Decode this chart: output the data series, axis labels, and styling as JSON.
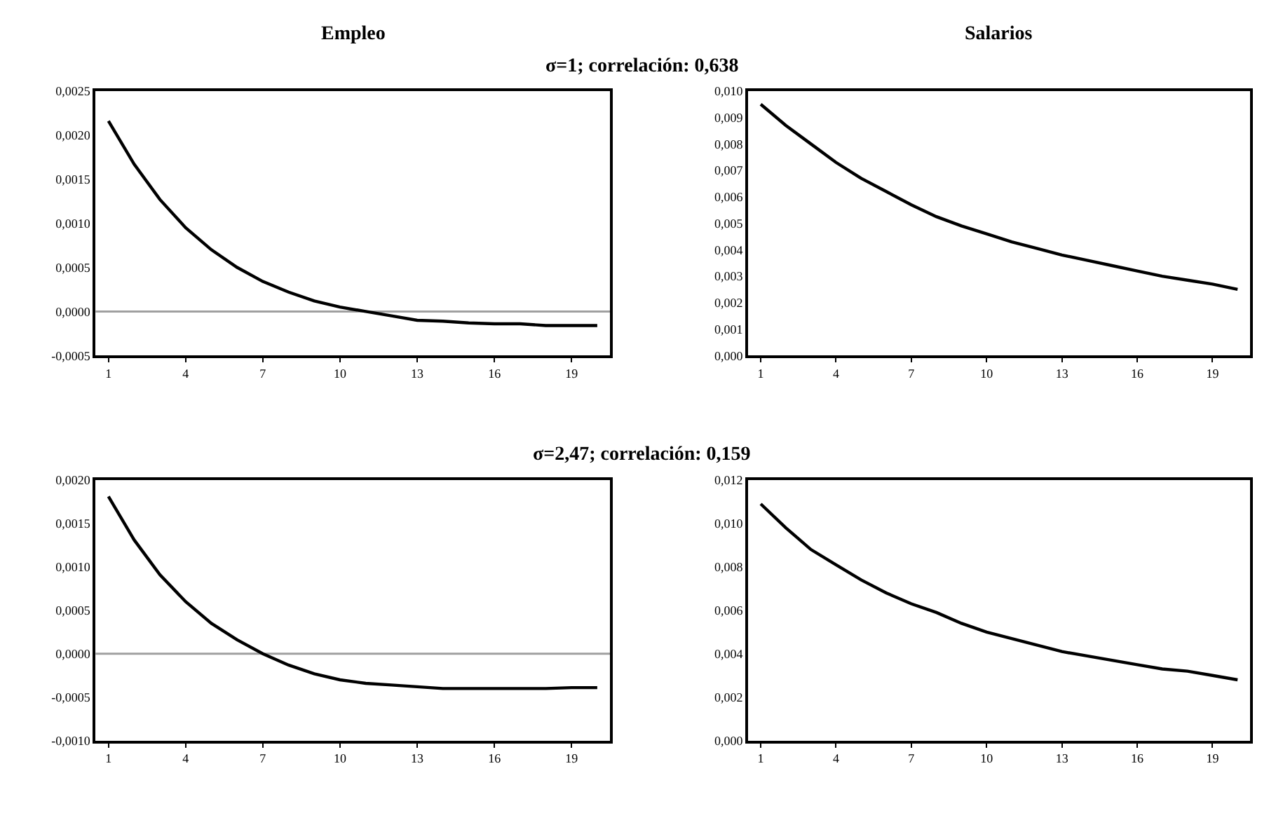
{
  "chart_data": [
    {
      "type": "line",
      "title": "Empleo",
      "subtitle": "σ=1; correlación: 0,638",
      "x": [
        1,
        2,
        3,
        4,
        5,
        6,
        7,
        8,
        9,
        10,
        11,
        12,
        13,
        14,
        15,
        16,
        17,
        18,
        19,
        20
      ],
      "series": [
        {
          "color": "#000000",
          "values": [
            0.00216,
            0.00167,
            0.00127,
            0.00095,
            0.0007,
            0.0005,
            0.00034,
            0.00022,
            0.00012,
            5e-05,
            0,
            -5e-05,
            -0.0001,
            -0.00011,
            -0.00013,
            -0.00014,
            -0.00014,
            -0.00016,
            -0.00016,
            -0.00016
          ]
        }
      ],
      "xlim": [
        0.5,
        20.5
      ],
      "xticks": [
        1,
        4,
        7,
        10,
        13,
        16,
        19
      ],
      "ylim": [
        -0.0005,
        0.0025
      ],
      "yticks": [
        {
          "value": -0.0005,
          "label": "-0,0005"
        },
        {
          "value": 0,
          "label": "0,0000"
        },
        {
          "value": 0.0005,
          "label": "0,0005"
        },
        {
          "value": 0.001,
          "label": "0,0010"
        },
        {
          "value": 0.0015,
          "label": "0,0015"
        },
        {
          "value": 0.002,
          "label": "0,0020"
        },
        {
          "value": 0.0025,
          "label": "0,0025"
        }
      ],
      "ref_lines": [
        {
          "axis": "y",
          "value": 0,
          "color": "#a0a0a0"
        }
      ],
      "grid": false,
      "marker": "none",
      "line_style": "solid"
    },
    {
      "type": "line",
      "title": "Salarios",
      "x": [
        1,
        2,
        3,
        4,
        5,
        6,
        7,
        8,
        9,
        10,
        11,
        12,
        13,
        14,
        15,
        16,
        17,
        18,
        19,
        20
      ],
      "series": [
        {
          "color": "#000000",
          "values": [
            0.0095,
            0.0087,
            0.008,
            0.0073,
            0.0067,
            0.0062,
            0.0057,
            0.00525,
            0.0049,
            0.0046,
            0.0043,
            0.00405,
            0.0038,
            0.0036,
            0.0034,
            0.0032,
            0.003,
            0.00285,
            0.0027,
            0.0025
          ]
        }
      ],
      "xlim": [
        0.5,
        20.5
      ],
      "xticks": [
        1,
        4,
        7,
        10,
        13,
        16,
        19
      ],
      "ylim": [
        0,
        0.01
      ],
      "yticks": [
        {
          "value": 0,
          "label": "0,000"
        },
        {
          "value": 0.001,
          "label": "0,001"
        },
        {
          "value": 0.002,
          "label": "0,002"
        },
        {
          "value": 0.003,
          "label": "0,003"
        },
        {
          "value": 0.004,
          "label": "0,004"
        },
        {
          "value": 0.005,
          "label": "0,005"
        },
        {
          "value": 0.006,
          "label": "0,006"
        },
        {
          "value": 0.007,
          "label": "0,007"
        },
        {
          "value": 0.008,
          "label": "0,008"
        },
        {
          "value": 0.009,
          "label": "0,009"
        },
        {
          "value": 0.01,
          "label": "0,010"
        }
      ],
      "grid": false,
      "marker": "none",
      "line_style": "solid"
    },
    {
      "type": "line",
      "subtitle": "σ=2,47; correlación: 0,159",
      "x": [
        1,
        2,
        3,
        4,
        5,
        6,
        7,
        8,
        9,
        10,
        11,
        12,
        13,
        14,
        15,
        16,
        17,
        18,
        19,
        20
      ],
      "series": [
        {
          "color": "#000000",
          "values": [
            0.00181,
            0.00131,
            0.00091,
            0.0006,
            0.00035,
            0.00016,
            0,
            -0.00013,
            -0.00023,
            -0.0003,
            -0.00034,
            -0.00036,
            -0.00038,
            -0.0004,
            -0.0004,
            -0.0004,
            -0.0004,
            -0.0004,
            -0.00039,
            -0.00039
          ]
        }
      ],
      "xlim": [
        0.5,
        20.5
      ],
      "xticks": [
        1,
        4,
        7,
        10,
        13,
        16,
        19
      ],
      "ylim": [
        -0.001,
        0.002
      ],
      "yticks": [
        {
          "value": -0.001,
          "label": "-0,0010"
        },
        {
          "value": -0.0005,
          "label": "-0,0005"
        },
        {
          "value": 0,
          "label": "0,0000"
        },
        {
          "value": 0.0005,
          "label": "0,0005"
        },
        {
          "value": 0.001,
          "label": "0,0010"
        },
        {
          "value": 0.0015,
          "label": "0,0015"
        },
        {
          "value": 0.002,
          "label": "0,0020"
        }
      ],
      "ref_lines": [
        {
          "axis": "y",
          "value": 0,
          "color": "#a0a0a0"
        }
      ],
      "grid": false,
      "marker": "none",
      "line_style": "solid"
    },
    {
      "type": "line",
      "x": [
        1,
        2,
        3,
        4,
        5,
        6,
        7,
        8,
        9,
        10,
        11,
        12,
        13,
        14,
        15,
        16,
        17,
        18,
        19,
        20
      ],
      "series": [
        {
          "color": "#000000",
          "values": [
            0.0109,
            0.0098,
            0.0088,
            0.0081,
            0.0074,
            0.0068,
            0.0063,
            0.0059,
            0.0054,
            0.005,
            0.0047,
            0.0044,
            0.0041,
            0.0039,
            0.0037,
            0.0035,
            0.0033,
            0.0032,
            0.003,
            0.0028
          ]
        }
      ],
      "xlim": [
        0.5,
        20.5
      ],
      "xticks": [
        1,
        4,
        7,
        10,
        13,
        16,
        19
      ],
      "ylim": [
        0,
        0.012
      ],
      "yticks": [
        {
          "value": 0,
          "label": "0,000"
        },
        {
          "value": 0.002,
          "label": "0,002"
        },
        {
          "value": 0.004,
          "label": "0,004"
        },
        {
          "value": 0.006,
          "label": "0,006"
        },
        {
          "value": 0.008,
          "label": "0,008"
        },
        {
          "value": 0.01,
          "label": "0,010"
        },
        {
          "value": 0.012,
          "label": "0,012"
        }
      ],
      "grid": false,
      "marker": "none",
      "line_style": "solid"
    }
  ]
}
